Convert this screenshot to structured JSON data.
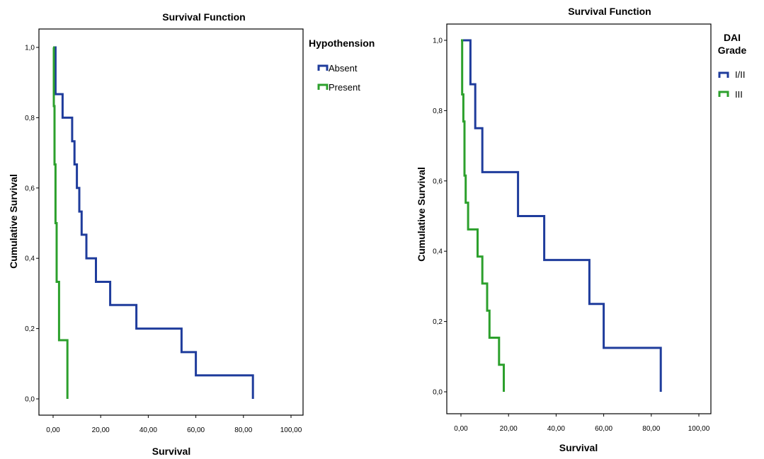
{
  "chart_data": [
    {
      "type": "line",
      "step": true,
      "title": "Survival Function",
      "xlabel": "Survival",
      "ylabel": "Cumulative Survival",
      "xlim": [
        0,
        100
      ],
      "ylim": [
        0,
        1
      ],
      "x_ticks": [
        0,
        20,
        40,
        60,
        80,
        100
      ],
      "x_tick_labels": [
        "0,00",
        "20,00",
        "40,00",
        "60,00",
        "80,00",
        "100,00"
      ],
      "y_ticks": [
        0,
        0.2,
        0.4,
        0.6,
        0.8,
        1.0
      ],
      "y_tick_labels": [
        "0,0",
        "0,2",
        "0,4",
        "0,6",
        "0,8",
        "1,0"
      ],
      "grid": false,
      "legend": {
        "title": "Hypothension",
        "placement": "right"
      },
      "series": [
        {
          "name": "Absent",
          "color": "#1f3c9c",
          "x": [
            0,
            1,
            3,
            4,
            8,
            9,
            10,
            11,
            12,
            14,
            18,
            24,
            35,
            54,
            60,
            84,
            84
          ],
          "y": [
            1.0,
            0.867,
            0.867,
            0.8,
            0.733,
            0.667,
            0.6,
            0.533,
            0.467,
            0.4,
            0.333,
            0.267,
            0.2,
            0.133,
            0.067,
            0.067,
            0.0
          ]
        },
        {
          "name": "Present",
          "color": "#2ca02c",
          "x": [
            0,
            0.3,
            0.6,
            1,
            1.5,
            2,
            2.5,
            6,
            6
          ],
          "y": [
            1.0,
            0.833,
            0.667,
            0.5,
            0.333,
            0.333,
            0.167,
            0.167,
            0.0
          ]
        }
      ]
    },
    {
      "type": "line",
      "step": true,
      "title": "Survival Function",
      "xlabel": "Survival",
      "ylabel": "Cumulative Survival",
      "xlim": [
        0,
        100
      ],
      "ylim": [
        0,
        1
      ],
      "x_ticks": [
        0,
        20,
        40,
        60,
        80,
        100
      ],
      "x_tick_labels": [
        "0,00",
        "20,00",
        "40,00",
        "60,00",
        "80,00",
        "100,00"
      ],
      "y_ticks": [
        0,
        0.2,
        0.4,
        0.6,
        0.8,
        1.0
      ],
      "y_tick_labels": [
        "0,0",
        "0,2",
        "0,4",
        "0,6",
        "0,8",
        "1,0"
      ],
      "grid": false,
      "legend": {
        "title_line1": "DAI",
        "title_line2": "Grade",
        "placement": "right"
      },
      "series": [
        {
          "name": "I/II",
          "color": "#1f3c9c",
          "x": [
            0,
            4,
            6,
            9,
            24,
            35,
            54,
            60,
            84,
            84
          ],
          "y": [
            1.0,
            0.875,
            0.75,
            0.625,
            0.5,
            0.375,
            0.25,
            0.125,
            0.125,
            0.0
          ],
          "leading_points": [
            [
              0,
              1.0
            ]
          ]
        },
        {
          "name": "III",
          "color": "#2ca02c",
          "x": [
            0,
            0.5,
            1,
            1.5,
            2,
            3,
            7,
            9,
            11,
            12,
            14,
            16,
            18,
            18
          ],
          "y": [
            1.0,
            0.846,
            0.769,
            0.615,
            0.538,
            0.462,
            0.385,
            0.308,
            0.231,
            0.154,
            0.154,
            0.077,
            0.077,
            0.0
          ]
        }
      ]
    }
  ]
}
